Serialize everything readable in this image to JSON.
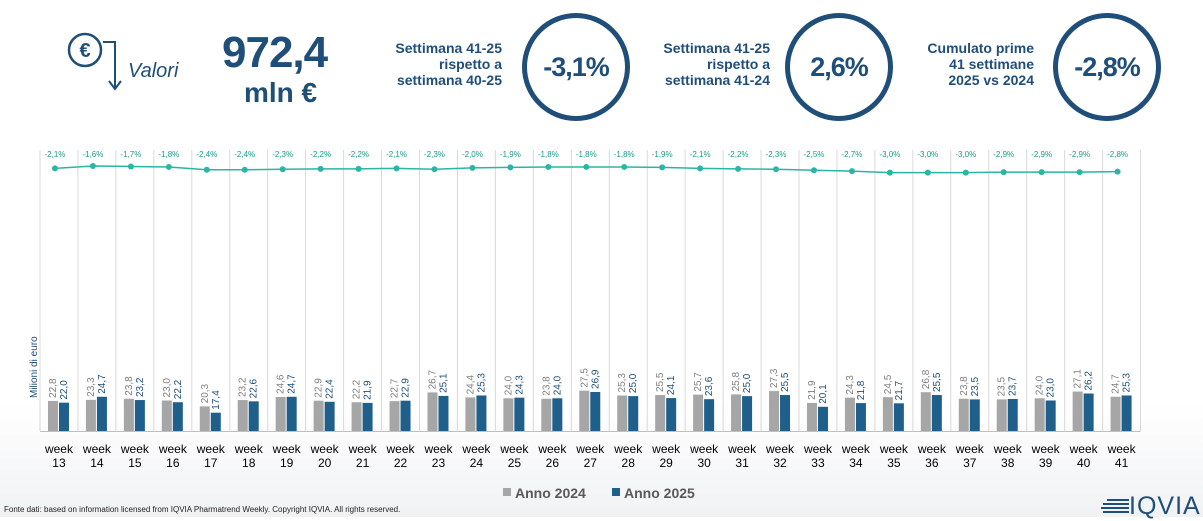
{
  "header": {
    "icon": "euro-down-arrow-icon",
    "label": "Valori",
    "value": "972,4",
    "unit": "mln €"
  },
  "comparisons": [
    {
      "label_lines": [
        "Settimana 41-25",
        "rispetto a",
        "settimana 40-25"
      ],
      "value": "-3,1%"
    },
    {
      "label_lines": [
        "Settimana 41-25",
        "rispetto a",
        "settimana 41-24"
      ],
      "value": "2,6%"
    },
    {
      "label_lines": [
        "Cumulato prime",
        "41 settimane",
        "2025 vs 2024"
      ],
      "value": "-2,8%"
    }
  ],
  "colors": {
    "accent": "#1f4e79",
    "series_2024": "#a6a6a6",
    "series_2025": "#1f5f8b",
    "growth_line": "#2ab5a5"
  },
  "chart_data": {
    "type": "bar",
    "ylabel": "Milioni di euro",
    "categories": [
      "week 13",
      "week 14",
      "week 15",
      "week 16",
      "week 17",
      "week 18",
      "week 19",
      "week 20",
      "week 21",
      "week 22",
      "week 23",
      "week 24",
      "week 25",
      "week 26",
      "week 27",
      "week 28",
      "week 29",
      "week 30",
      "week 31",
      "week 32",
      "week 33",
      "week 34",
      "week 35",
      "week 36",
      "week 37",
      "week 38",
      "week 39",
      "week 40",
      "week 41"
    ],
    "series": [
      {
        "name": "Anno 2024",
        "color": "#a6a6a6",
        "values": [
          22.8,
          23.3,
          23.8,
          23.0,
          20.3,
          23.2,
          24.6,
          22.9,
          22.2,
          22.7,
          26.7,
          24.4,
          24.0,
          23.8,
          27.5,
          25.3,
          25.5,
          25.7,
          25.8,
          27.3,
          21.9,
          24.3,
          24.5,
          26.8,
          23.8,
          23.5,
          24.0,
          27.1,
          24.7
        ],
        "labels": [
          "22,8",
          "23,3",
          "23,8",
          "23,0",
          "20,3",
          "23,2",
          "24,6",
          "22,9",
          "22,2",
          "22,7",
          "26,7",
          "24,4",
          "24,0",
          "23,8",
          "27,5",
          "25,3",
          "25,5",
          "25,7",
          "25,8",
          "27,3",
          "21,9",
          "24,3",
          "24,5",
          "26,8",
          "23,8",
          "23,5",
          "24,0",
          "27,1",
          "24,7"
        ]
      },
      {
        "name": "Anno 2025",
        "color": "#1f5f8b",
        "values": [
          22.0,
          24.7,
          23.2,
          22.2,
          17.4,
          22.6,
          24.7,
          22.4,
          21.9,
          22.9,
          25.1,
          25.3,
          24.3,
          24.0,
          26.9,
          25.0,
          24.1,
          23.6,
          25.0,
          25.5,
          20.1,
          21.8,
          21.7,
          25.5,
          23.5,
          23.7,
          23.0,
          26.2,
          25.3
        ],
        "labels": [
          "22,0",
          "24,7",
          "23,2",
          "22,2",
          "17,4",
          "22,6",
          "24,7",
          "22,4",
          "21,9",
          "22,9",
          "25,1",
          "25,3",
          "24,3",
          "24,0",
          "26,9",
          "25,0",
          "24,1",
          "23,6",
          "25,0",
          "25,5",
          "20,1",
          "21,8",
          "21,7",
          "25,5",
          "23,5",
          "23,7",
          "23,0",
          "26,2",
          "25,3"
        ]
      }
    ],
    "growth": {
      "values": [
        -2.1,
        -1.6,
        -1.7,
        -1.8,
        -2.4,
        -2.4,
        -2.3,
        -2.2,
        -2.2,
        -2.1,
        -2.3,
        -2.0,
        -1.9,
        -1.8,
        -1.8,
        -1.8,
        -1.9,
        -2.1,
        -2.2,
        -2.3,
        -2.5,
        -2.7,
        -3.0,
        -3.0,
        -3.0,
        -2.9,
        -2.9,
        -2.9,
        -2.8
      ],
      "labels": [
        "-2,1%",
        "-1,6%",
        "-1,7%",
        "-1,8%",
        "-2,4%",
        "-2,4%",
        "-2,3%",
        "-2,2%",
        "-2,2%",
        "-2,1%",
        "-2,3%",
        "-2,0%",
        "-1,9%",
        "-1,8%",
        "-1,8%",
        "-1,8%",
        "-1,9%",
        "-2,1%",
        "-2,2%",
        "-2,3%",
        "-2,5%",
        "-2,7%",
        "-3,0%",
        "-3,0%",
        "-3,0%",
        "-2,9%",
        "-2,9%",
        "-2,9%",
        "-2,8%"
      ]
    },
    "legend": "bottom-center"
  },
  "footer": {
    "source": "Fonte dati: based on information licensed from IQVIA Pharmatrend Weekly. Copyright IQVIA. All rights reserved.",
    "logo_text": "IQVIA"
  }
}
